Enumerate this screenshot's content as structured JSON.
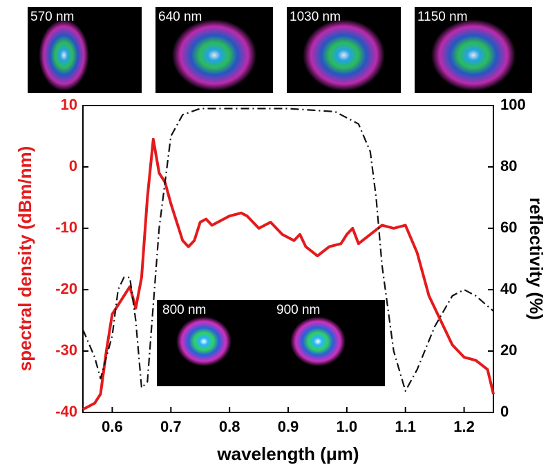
{
  "chart_data": {
    "type": "line",
    "x_label": "wavelength (μm)",
    "y_label": "spectral density (dBm/nm)",
    "y2_label": "reflectivity (%)",
    "xlim": [
      0.55,
      1.25
    ],
    "xticks": [
      0.6,
      0.7,
      0.8,
      0.9,
      {
        "value": 1,
        "label": "1.0"
      },
      1.1,
      1.2
    ],
    "ylim": [
      -40,
      10
    ],
    "yticks": [
      -40,
      -30,
      -20,
      -10,
      0,
      10
    ],
    "y2lim": [
      0,
      100
    ],
    "y2ticks": [
      0,
      20,
      40,
      60,
      80,
      100
    ],
    "y_color": "#e41a1c",
    "top_inset_labels": [
      "570 nm",
      "640 nm",
      "1030 nm",
      "1150 nm"
    ],
    "bottom_inset_labels": [
      "800 nm",
      "900 nm"
    ],
    "series": [
      {
        "name": "spectral density",
        "color": "#e41a1c",
        "dash": "solid",
        "axis": "y",
        "x": [
          0.55,
          0.56,
          0.57,
          0.58,
          0.59,
          0.6,
          0.61,
          0.62,
          0.63,
          0.64,
          0.65,
          0.66,
          0.67,
          0.68,
          0.69,
          0.7,
          0.71,
          0.72,
          0.73,
          0.74,
          0.75,
          0.76,
          0.77,
          0.78,
          0.8,
          0.82,
          0.83,
          0.85,
          0.87,
          0.89,
          0.9,
          0.91,
          0.92,
          0.93,
          0.95,
          0.97,
          0.99,
          1.0,
          1.01,
          1.02,
          1.04,
          1.06,
          1.08,
          1.1,
          1.12,
          1.14,
          1.16,
          1.18,
          1.2,
          1.22,
          1.24,
          1.25
        ],
        "values": [
          -39.5,
          -39,
          -38.5,
          -37,
          -30,
          -24,
          -22.5,
          -21,
          -19.5,
          -23,
          -18,
          -5,
          4.5,
          -1,
          -2.5,
          -6,
          -9,
          -12,
          -13,
          -12,
          -9,
          -8.5,
          -9.5,
          -9,
          -8,
          -7.5,
          -8,
          -10,
          -9,
          -11,
          -11.5,
          -12,
          -11,
          -13,
          -14.5,
          -13,
          -12.5,
          -11,
          -10,
          -12.5,
          -11,
          -9.5,
          -10,
          -9.5,
          -14,
          -21,
          -25,
          -29,
          -31,
          -31.5,
          -33,
          -37
        ]
      },
      {
        "name": "reflectivity",
        "color": "#111111",
        "dash": "dashdot",
        "axis": "y2",
        "x": [
          0.55,
          0.57,
          0.58,
          0.6,
          0.61,
          0.62,
          0.63,
          0.64,
          0.65,
          0.66,
          0.68,
          0.7,
          0.72,
          0.75,
          0.8,
          0.9,
          0.98,
          1.02,
          1.04,
          1.05,
          1.06,
          1.08,
          1.1,
          1.12,
          1.15,
          1.18,
          1.2,
          1.22,
          1.25
        ],
        "values": [
          27,
          18,
          11,
          25,
          40,
          44,
          44,
          30,
          8,
          10,
          60,
          90,
          97,
          99,
          99,
          99,
          98,
          94,
          85,
          70,
          48,
          20,
          7,
          14,
          28,
          38,
          40,
          38,
          33
        ]
      }
    ]
  }
}
